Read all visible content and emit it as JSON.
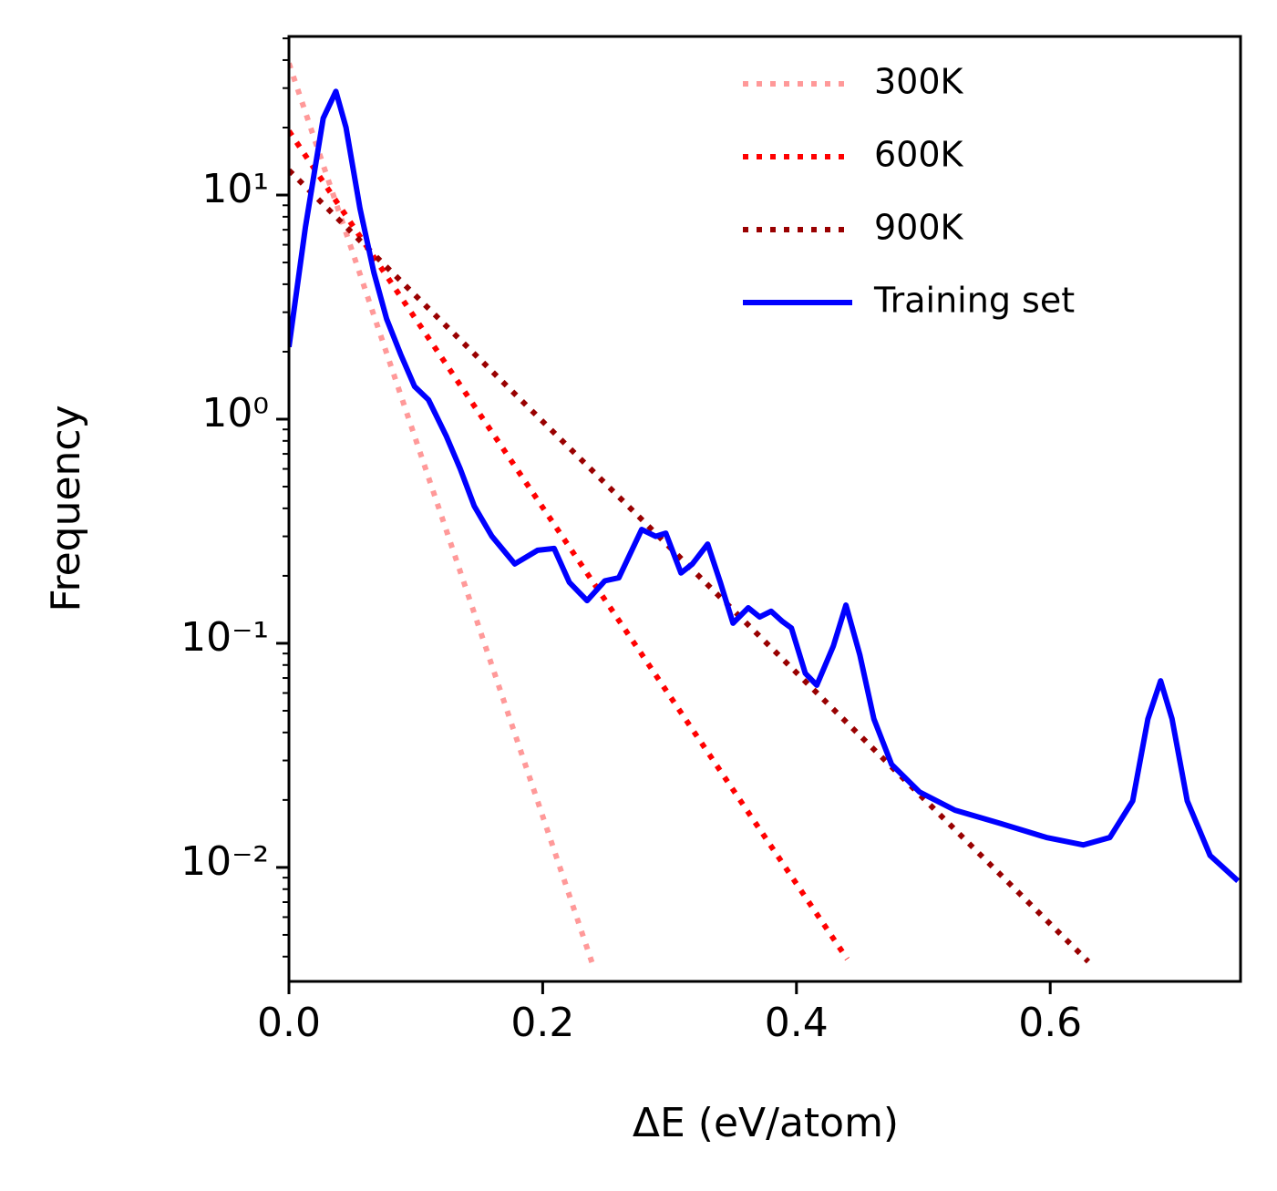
{
  "chart_data": {
    "type": "line",
    "xlabel": "ΔE (eV/atom)",
    "ylabel": "Frequency",
    "xlim": [
      0,
      0.75
    ],
    "ylim": [
      0.0031,
      51
    ],
    "xticks": [
      {
        "value": 0,
        "label": "0.0"
      },
      0.2,
      0.4,
      0.6
    ],
    "yticks": [
      {
        "value": 0.01,
        "label": "10⁻²"
      },
      {
        "value": 0.1,
        "label": "10⁻¹"
      },
      {
        "value": 1,
        "label": "10⁰"
      },
      {
        "value": 10,
        "label": "10¹"
      }
    ],
    "log_y": true,
    "legend": "upper right",
    "series": [
      {
        "name": "300K",
        "color": "#ff9999",
        "style": "dotted",
        "x": [
          0,
          0.24
        ],
        "values": [
          38.7,
          0.0036
        ]
      },
      {
        "name": "600K",
        "color": "#ff0000",
        "style": "dotted",
        "x": [
          0,
          0.44
        ],
        "values": [
          19.3,
          0.0039
        ]
      },
      {
        "name": "900K",
        "color": "#990000",
        "style": "dotted",
        "x": [
          0,
          0.63
        ],
        "values": [
          12.9,
          0.0038
        ]
      },
      {
        "name": "Training set",
        "color": "#0000ff",
        "style": "solid",
        "x": [
          0,
          0.013,
          0.027,
          0.037,
          0.045,
          0.056,
          0.067,
          0.077,
          0.088,
          0.099,
          0.11,
          0.124,
          0.135,
          0.146,
          0.16,
          0.178,
          0.196,
          0.209,
          0.221,
          0.235,
          0.249,
          0.26,
          0.278,
          0.289,
          0.297,
          0.309,
          0.318,
          0.33,
          0.34,
          0.35,
          0.362,
          0.371,
          0.38,
          0.389,
          0.396,
          0.407,
          0.416,
          0.429,
          0.439,
          0.45,
          0.461,
          0.475,
          0.497,
          0.525,
          0.561,
          0.597,
          0.626,
          0.647,
          0.665,
          0.677,
          0.687,
          0.696,
          0.708,
          0.726,
          0.748
        ],
        "values": [
          2.1,
          7.2,
          22,
          29,
          20,
          8.7,
          4.5,
          2.8,
          1.95,
          1.4,
          1.22,
          0.84,
          0.6,
          0.41,
          0.3,
          0.226,
          0.26,
          0.265,
          0.187,
          0.155,
          0.19,
          0.196,
          0.322,
          0.3,
          0.31,
          0.206,
          0.226,
          0.277,
          0.187,
          0.123,
          0.144,
          0.131,
          0.139,
          0.125,
          0.117,
          0.0734,
          0.065,
          0.097,
          0.148,
          0.0885,
          0.046,
          0.0288,
          0.0217,
          0.018,
          0.0157,
          0.0136,
          0.0126,
          0.0136,
          0.0198,
          0.046,
          0.068,
          0.046,
          0.0198,
          0.0113,
          0.0087
        ]
      }
    ]
  }
}
